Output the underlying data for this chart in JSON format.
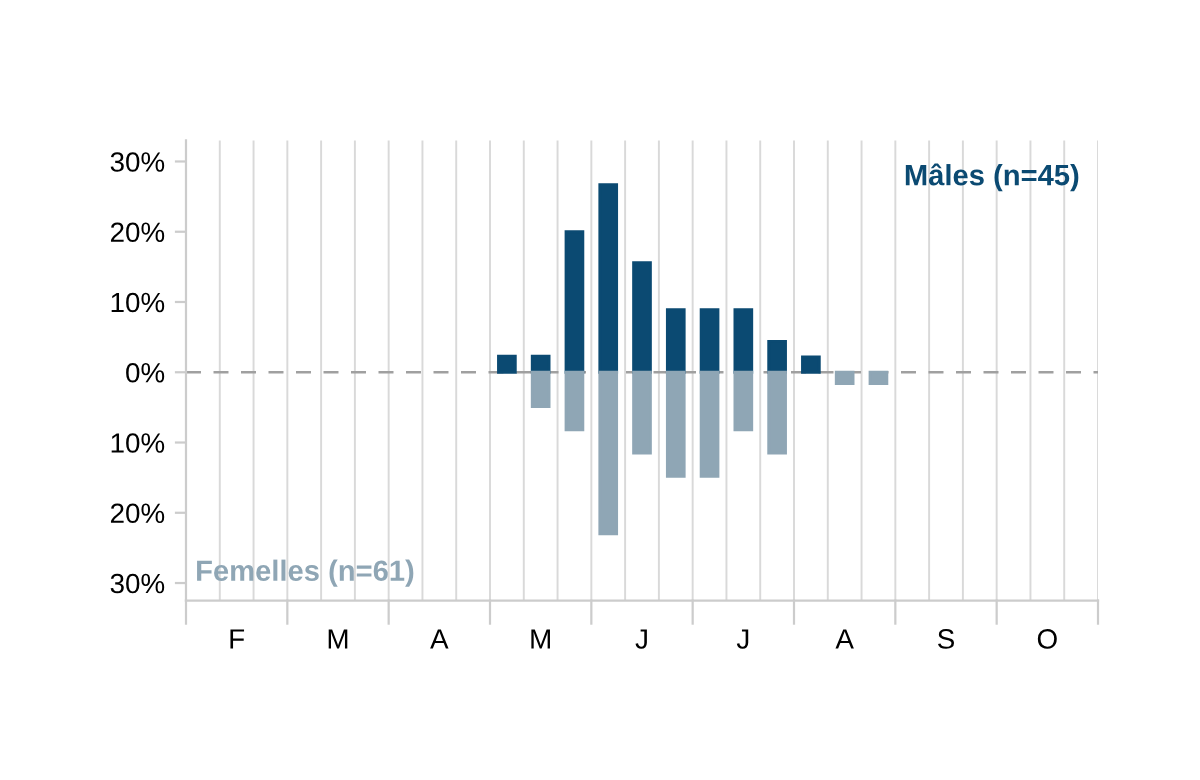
{
  "chart_data": {
    "type": "bar",
    "categories": [
      null,
      "F",
      null,
      null,
      "M",
      null,
      null,
      "A",
      null,
      null,
      "M",
      null,
      null,
      "J",
      null,
      null,
      "J",
      null,
      null,
      "A",
      null,
      null,
      "S",
      null,
      null,
      "O",
      null
    ],
    "series": [
      {
        "name": "Mâles (n=45)",
        "color": "#0b4a72",
        "values": [
          null,
          null,
          null,
          null,
          null,
          null,
          null,
          null,
          null,
          2.3,
          2.3,
          20,
          26.7,
          15.6,
          8.9,
          8.9,
          8.9,
          4.4,
          2.2,
          null,
          null,
          null,
          null,
          null,
          null,
          null,
          null
        ]
      },
      {
        "name": "Femelles (n=61)",
        "color": "#8fa6b5",
        "values": [
          null,
          null,
          null,
          null,
          null,
          null,
          null,
          null,
          null,
          null,
          -4.9,
          -8.2,
          -23,
          -11.5,
          -14.8,
          -14.8,
          -8.2,
          -11.5,
          null,
          -1.6,
          -1.6,
          null,
          null,
          null,
          null,
          null,
          null
        ]
      }
    ],
    "ylim": [
      -32.5,
      33
    ],
    "yticks": [
      {
        "value": 30,
        "label": "30%"
      },
      {
        "value": 20,
        "label": "20%"
      },
      {
        "value": 10,
        "label": "10%"
      },
      {
        "value": 0,
        "label": "0%"
      },
      {
        "value": -10,
        "label": "10%"
      },
      {
        "value": -20,
        "label": "20%"
      },
      {
        "value": -30,
        "label": "30%"
      }
    ],
    "ref_lines": [
      {
        "axis": "y",
        "value": 0,
        "color": "#a0a0a0",
        "line_style": "dashed"
      }
    ],
    "grid": "x",
    "legend": false
  }
}
